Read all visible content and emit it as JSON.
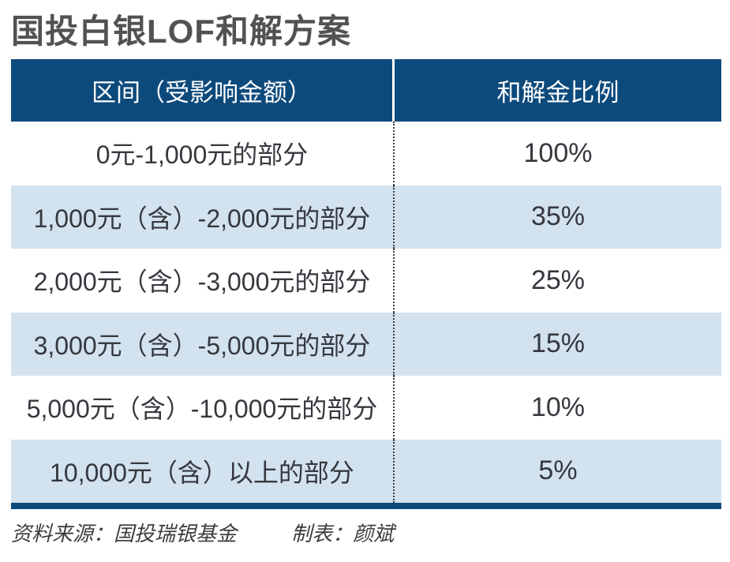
{
  "title": "国投白银LOF和解方案",
  "colors": {
    "header_bg": "#0d4a7c",
    "row_alt_bg": "#d3e2ef",
    "body_text": "#35383e",
    "title_color": "#515254",
    "footer_color": "#3d3d3f"
  },
  "table": {
    "headers": [
      "区间（受影响金额）",
      "和解金比例"
    ],
    "rows": [
      {
        "range": "0元-1,000元的部分",
        "ratio": "100%"
      },
      {
        "range": "1,000元（含）-2,000元的部分",
        "ratio": "35%"
      },
      {
        "range": "2,000元（含）-3,000元的部分",
        "ratio": "25%"
      },
      {
        "range": "3,000元（含）-5,000元的部分",
        "ratio": "15%"
      },
      {
        "range": "5,000元（含）-10,000元的部分",
        "ratio": "10%"
      },
      {
        "range": "10,000元（含）以上的部分",
        "ratio": "5%"
      }
    ]
  },
  "footer": {
    "source": "资料来源：国投瑞银基金",
    "credit": "制表：颜斌"
  },
  "chart_data": {
    "type": "table",
    "title": "国投白银LOF和解方案",
    "columns": [
      "区间（受影响金额）",
      "和解金比例"
    ],
    "categories": [
      "0元-1,000元的部分",
      "1,000元（含）-2,000元的部分",
      "2,000元（含）-3,000元的部分",
      "3,000元（含）-5,000元的部分",
      "5,000元（含）-10,000元的部分",
      "10,000元（含）以上的部分"
    ],
    "values_percent": [
      100,
      35,
      25,
      15,
      10,
      5
    ],
    "source": "资料来源：国投瑞银基金",
    "credit": "制表：颜斌"
  }
}
